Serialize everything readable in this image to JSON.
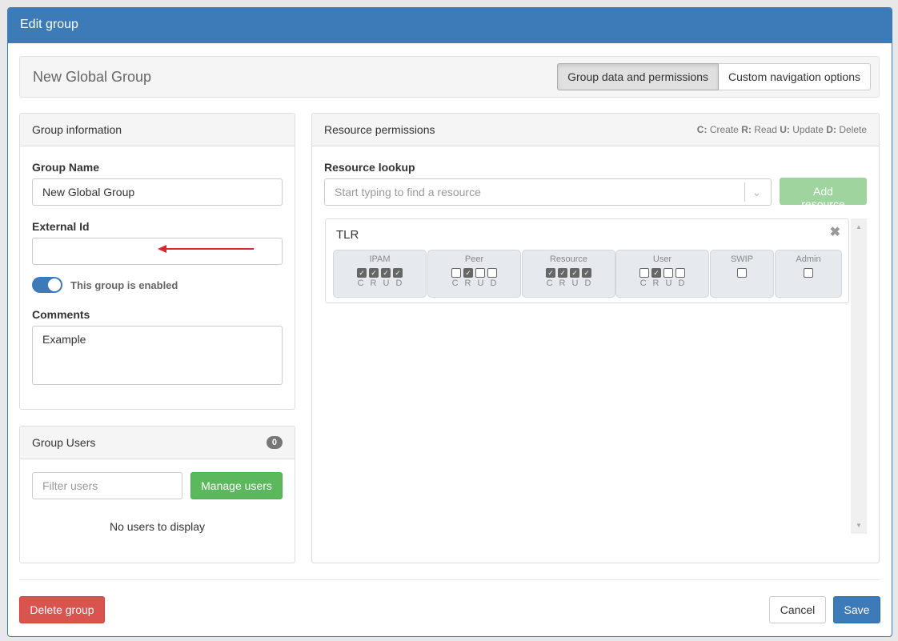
{
  "modal": {
    "title": "Edit group"
  },
  "top": {
    "group_title": "New Global Group",
    "tabs": [
      {
        "label": "Group data and permissions",
        "active": true
      },
      {
        "label": "Custom navigation options",
        "active": false
      }
    ]
  },
  "info": {
    "title": "Group information",
    "name_label": "Group Name",
    "name_value": "New Global Group",
    "external_label": "External Id",
    "external_value": "",
    "enabled_label": "This group is enabled",
    "enabled": true,
    "comments_label": "Comments",
    "comments_value": "Example"
  },
  "users": {
    "title": "Group Users",
    "count": "0",
    "filter_placeholder": "Filter users",
    "manage_label": "Manage users",
    "empty": "No users to display"
  },
  "resources": {
    "title": "Resource permissions",
    "legend": [
      {
        "k": "C:",
        "v": "Create"
      },
      {
        "k": "R:",
        "v": "Read"
      },
      {
        "k": "U:",
        "v": "Update"
      },
      {
        "k": "D:",
        "v": "Delete"
      }
    ],
    "lookup_label": "Resource lookup",
    "lookup_placeholder": "Start typing to find a resource",
    "add_label": "Add resource",
    "items": [
      {
        "name": "TLR",
        "groups": [
          {
            "label": "IPAM",
            "checks": [
              true,
              true,
              true,
              true
            ],
            "letters": [
              "C",
              "R",
              "U",
              "D"
            ]
          },
          {
            "label": "Peer",
            "checks": [
              false,
              true,
              false,
              false
            ],
            "letters": [
              "C",
              "R",
              "U",
              "D"
            ]
          },
          {
            "label": "Resource",
            "checks": [
              true,
              true,
              true,
              true
            ],
            "letters": [
              "C",
              "R",
              "U",
              "D"
            ]
          },
          {
            "label": "User",
            "checks": [
              false,
              true,
              false,
              false
            ],
            "letters": [
              "C",
              "R",
              "U",
              "D"
            ]
          },
          {
            "label": "SWIP",
            "checks": [
              false
            ],
            "letters": []
          },
          {
            "label": "Admin",
            "checks": [
              false
            ],
            "letters": []
          }
        ]
      }
    ]
  },
  "footer": {
    "delete_label": "Delete group",
    "cancel_label": "Cancel",
    "save_label": "Save"
  },
  "colors": {
    "primary": "#3c7ab8",
    "success": "#5cb85c",
    "danger": "#d9534f",
    "arrow": "#d9262c"
  }
}
